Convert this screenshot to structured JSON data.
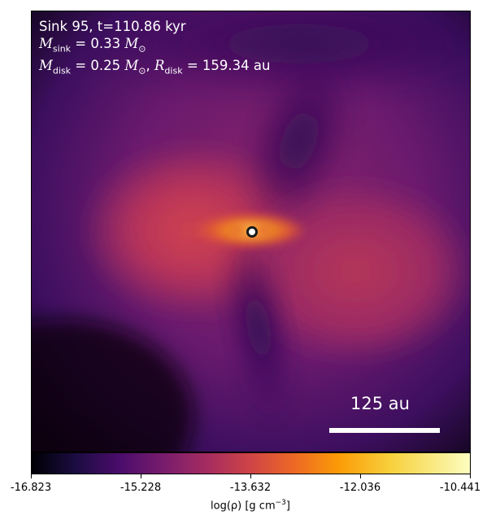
{
  "header": {
    "sink_line": "Sink 95, t=110.86 kyr",
    "msink_symbol": "M",
    "msink_sub": "sink",
    "msink_value": "= 0.33",
    "mdisk_symbol": "M",
    "mdisk_sub": "disk",
    "mdisk_value": "= 0.25",
    "rdisk_symbol": "R",
    "rdisk_sub": "disk",
    "rdisk_value": "= 159.34 au",
    "solar_mass": "M",
    "solar_sub": "⊙"
  },
  "scale_bar": {
    "label": "125 au"
  },
  "colorbar": {
    "ticks": [
      "-16.823",
      "-15.228",
      "-13.632",
      "-12.036",
      "-10.441"
    ],
    "label_main": "log(ρ) [g cm",
    "label_exp": "−3",
    "label_end": "]",
    "colormap": "inferno"
  }
}
